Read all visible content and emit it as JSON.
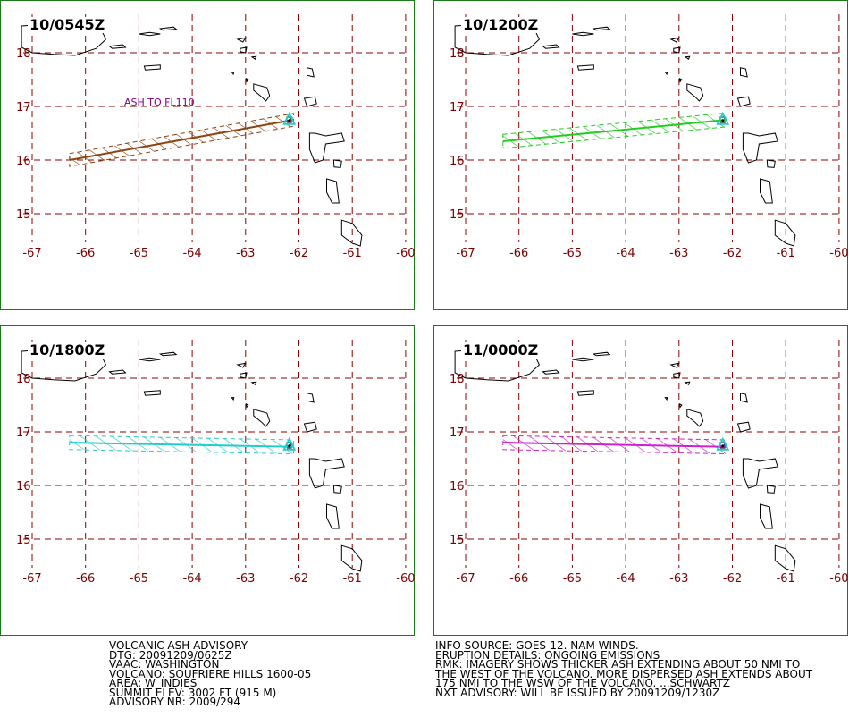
{
  "map": {
    "lon_ticks": [
      "-67",
      "-66",
      "-65",
      "-64",
      "-63",
      "-62",
      "-61",
      "-60"
    ],
    "lat_ticks": [
      "18",
      "17",
      "16",
      "15"
    ],
    "grid_color": "#8b0000",
    "frame_color": "#1a7a1a"
  },
  "panels": [
    {
      "id": "p1",
      "title": "10/0545Z",
      "color": "#8b4513",
      "note": "ASH TO FL110",
      "axis": [
        [
          -66.3,
          16.0
        ],
        [
          -62.1,
          16.75
        ]
      ],
      "halfwidth": 0.12
    },
    {
      "id": "p2",
      "title": "10/1200Z",
      "color": "#22cc22",
      "note": "",
      "axis": [
        [
          -66.3,
          16.35
        ],
        [
          -62.1,
          16.75
        ]
      ],
      "halfwidth": 0.13
    },
    {
      "id": "p3",
      "title": "10/1800Z",
      "color": "#22cccc",
      "note": "",
      "axis": [
        [
          -66.3,
          16.8
        ],
        [
          -62.1,
          16.72
        ]
      ],
      "halfwidth": 0.13
    },
    {
      "id": "p4",
      "title": "11/0000Z",
      "color": "#cc22cc",
      "note": "",
      "axis": [
        [
          -66.3,
          16.8
        ],
        [
          -62.1,
          16.72
        ]
      ],
      "halfwidth": 0.13
    }
  ],
  "volcano": {
    "lon": -62.18,
    "lat": 16.72,
    "marker_color": "#22cccc"
  },
  "advisory_left": [
    "VOLCANIC ASH ADVISORY",
    "DTG: 20091209/0625Z",
    "VAAC: WASHINGTON",
    "VOLCANO: SOUFRIERE HILLS 1600-05",
    "AREA: W_INDIES",
    "SUMMIT ELEV: 3002 FT (915 M)",
    "ADVISORY NR: 2009/294"
  ],
  "advisory_right": [
    "INFO SOURCE: GOES-12. NAM WINDS.",
    "ERUPTION DETAILS: ONGOING EMISSIONS",
    "RMK: IMAGERY SHOWS THICKER ASH EXTENDING ABOUT 50 NMI TO",
    "THE WEST OF THE VOLCANO. MORE DISPERSED ASH EXTENDS ABOUT",
    "175 NMI TO THE WSW OF THE VOLCANO. ...SCHWARTZ",
    "NXT ADVISORY: WILL BE ISSUED BY 20091209/1230Z"
  ]
}
